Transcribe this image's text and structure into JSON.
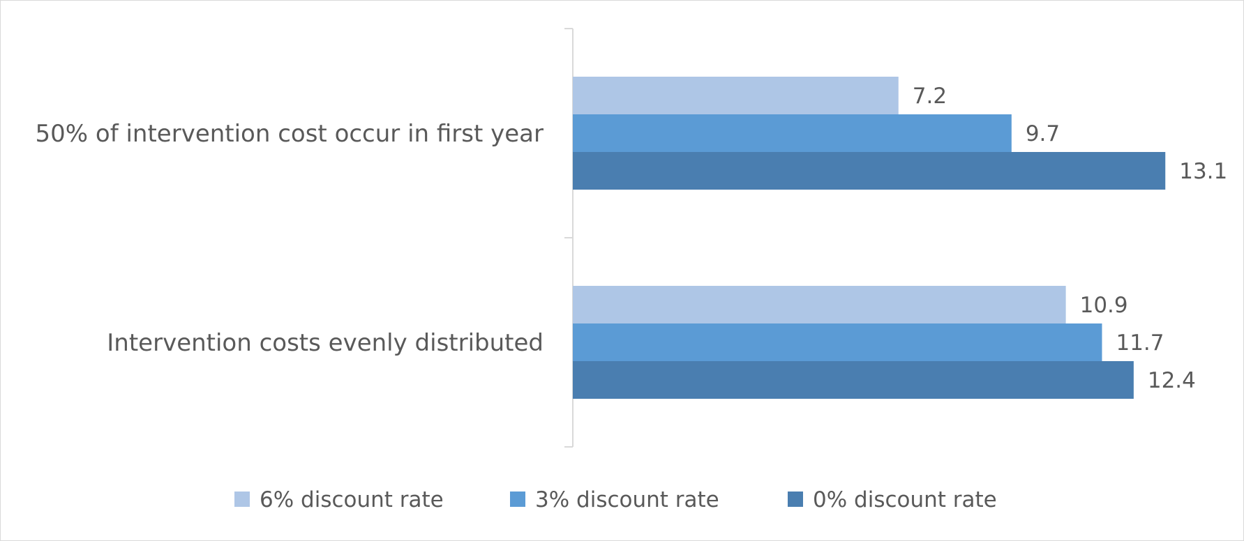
{
  "chart_data": {
    "type": "bar",
    "orientation": "horizontal",
    "categories": [
      "50% of intervention cost occur in first year",
      "Intervention costs evenly distributed"
    ],
    "series": [
      {
        "name": "6% discount rate",
        "values": [
          7.2,
          10.9
        ],
        "color": "#aec6e6"
      },
      {
        "name": "3% discount rate",
        "values": [
          9.7,
          11.7
        ],
        "color": "#5b9bd5"
      },
      {
        "name": "0% discount rate",
        "values": [
          13.1,
          12.4
        ],
        "color": "#4a7eb0"
      }
    ],
    "xlim": [
      0,
      14.5
    ],
    "grid": false,
    "legend": "bottom"
  }
}
